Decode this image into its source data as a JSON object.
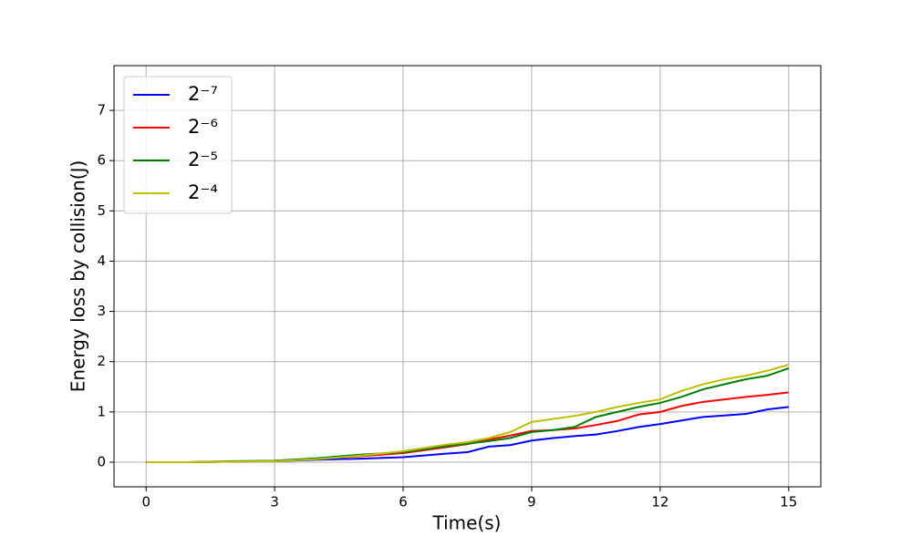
{
  "chart_data": {
    "type": "line",
    "xlabel": "Time(s)",
    "ylabel": "Energy loss by collision(J)",
    "x": [
      0,
      1,
      2,
      3,
      4,
      5,
      6,
      7,
      7.5,
      8,
      8.5,
      9,
      9.5,
      10,
      10.5,
      11,
      11.5,
      12,
      12.5,
      13,
      13.5,
      14,
      14.5,
      15
    ],
    "series": [
      {
        "name": "2⁻⁷",
        "color": "#0000ff",
        "values": [
          0,
          0,
          0.01,
          0.02,
          0.05,
          0.07,
          0.1,
          0.17,
          0.2,
          0.31,
          0.34,
          0.43,
          0.48,
          0.52,
          0.55,
          0.62,
          0.7,
          0.76,
          0.83,
          0.9,
          0.93,
          0.96,
          1.05,
          1.1
        ]
      },
      {
        "name": "2⁻⁶",
        "color": "#ff0000",
        "values": [
          0,
          0,
          0.01,
          0.03,
          0.07,
          0.12,
          0.18,
          0.3,
          0.36,
          0.45,
          0.53,
          0.62,
          0.64,
          0.67,
          0.74,
          0.82,
          0.95,
          1.0,
          1.12,
          1.2,
          1.25,
          1.3,
          1.34,
          1.39
        ]
      },
      {
        "name": "2⁻⁵",
        "color": "#008000",
        "values": [
          0,
          0,
          0.02,
          0.03,
          0.08,
          0.15,
          0.2,
          0.32,
          0.37,
          0.42,
          0.48,
          0.6,
          0.64,
          0.7,
          0.9,
          1.0,
          1.1,
          1.18,
          1.3,
          1.45,
          1.55,
          1.65,
          1.72,
          1.87
        ]
      },
      {
        "name": "2⁻⁴",
        "color": "#bfbf00",
        "values": [
          0,
          0,
          0.01,
          0.02,
          0.06,
          0.13,
          0.22,
          0.35,
          0.4,
          0.48,
          0.6,
          0.8,
          0.86,
          0.92,
          1.0,
          1.1,
          1.18,
          1.25,
          1.42,
          1.55,
          1.65,
          1.72,
          1.82,
          1.94
        ]
      }
    ],
    "xlim": [
      -0.75,
      15.75
    ],
    "xticks": [
      0,
      3,
      6,
      9,
      12,
      15
    ],
    "ylim": [
      -0.49,
      7.89
    ],
    "yticks": [
      0,
      1,
      2,
      3,
      4,
      5,
      6,
      7
    ],
    "grid": true,
    "legend": "upper-left"
  }
}
